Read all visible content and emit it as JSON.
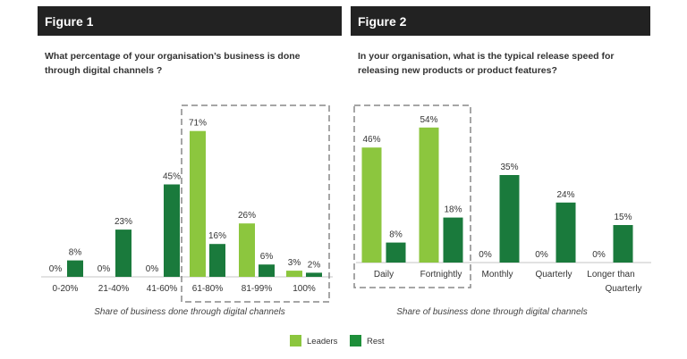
{
  "colors": {
    "leaders": "#8cc63e",
    "rest": "#1a7a3c",
    "header": "#222222"
  },
  "legend": [
    {
      "name": "Leaders",
      "color": "#8cc63e"
    },
    {
      "name": "Rest",
      "color": "#1e8f3a"
    }
  ],
  "chart_data": [
    {
      "type": "bar",
      "header": "Figure 1",
      "title": "What percentage of your organisation's  business is done through digital channels  ?",
      "title_lines": [
        "What percentage of your organisation’s  business is done",
        "through digital channels  ?"
      ],
      "xlabel": "Share of business done through digital channels",
      "categories": [
        "0-20%",
        "21-40%",
        "41-60%",
        "61-80%",
        "81-99%",
        "100%"
      ],
      "series": [
        {
          "name": "Leaders",
          "values": [
            0,
            0,
            0,
            71,
            26,
            3
          ]
        },
        {
          "name": "Rest",
          "values": [
            8,
            23,
            45,
            16,
            6,
            2
          ]
        }
      ],
      "highlighted_categories": [
        "61-80%",
        "81-99%",
        "100%"
      ]
    },
    {
      "type": "bar",
      "header": "Figure 2",
      "title": "In your organisation,  what is the typical  release speed for releasing new products or product features?",
      "title_lines": [
        "In your organisation,  what is the typical  release speed for",
        "releasing new products or product  features?"
      ],
      "xlabel": "Share of business done through digital channels",
      "categories": [
        "Daily",
        "Fortnightly",
        "Monthly",
        "Quarterly",
        "Longer than Quarterly"
      ],
      "series": [
        {
          "name": "Leaders",
          "values": [
            46,
            54,
            0,
            0,
            0
          ]
        },
        {
          "name": "Rest",
          "values": [
            8,
            18,
            35,
            24,
            15
          ]
        }
      ],
      "highlighted_categories": [
        "Daily",
        "Fortnightly"
      ]
    }
  ]
}
